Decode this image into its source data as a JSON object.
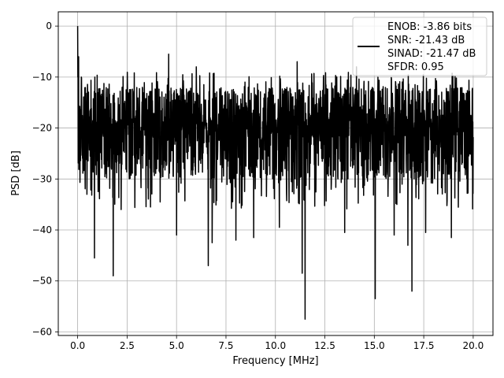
{
  "chart_data": {
    "type": "line",
    "title": "",
    "xlabel": "Frequency [MHz]",
    "ylabel": "PSD [dB]",
    "xlim": [
      -0.98,
      21.0
    ],
    "ylim": [
      -60.7,
      2.8
    ],
    "grid": true,
    "xticks": [
      0.0,
      2.5,
      5.0,
      7.5,
      10.0,
      12.5,
      15.0,
      17.5,
      20.0
    ],
    "xtick_labels": [
      "0.0",
      "2.5",
      "5.0",
      "7.5",
      "10.0",
      "12.5",
      "15.0",
      "17.5",
      "20.0"
    ],
    "yticks": [
      0,
      -10,
      -20,
      -30,
      -40,
      -50,
      -60
    ],
    "ytick_labels": [
      "0",
      "−10",
      "−20",
      "−30",
      "−40",
      "−50",
      "−60"
    ],
    "series_color": "#000000",
    "legend": {
      "placement": "upper right",
      "entries": [
        "ENOB: -3.86 bits",
        "SNR: -21.43 dB",
        "SINAD: -21.47 dB",
        "SFDR: 0.95"
      ]
    },
    "series": [
      {
        "description": "noise-like PSD trace, dense oscillation roughly between -10 and -30 dB across 0-20 MHz",
        "x_range": [
          0.0,
          20.0
        ],
        "points_approx": 2048,
        "peak": {
          "x": 0.0,
          "y": 0.0
        },
        "notable_dips": [
          {
            "x": 0.85,
            "y": -45.5
          },
          {
            "x": 1.8,
            "y": -49.0
          },
          {
            "x": 2.2,
            "y": -36.0
          },
          {
            "x": 5.0,
            "y": -41.0
          },
          {
            "x": 6.6,
            "y": -47.0
          },
          {
            "x": 6.8,
            "y": -42.5
          },
          {
            "x": 8.0,
            "y": -42.0
          },
          {
            "x": 8.9,
            "y": -41.5
          },
          {
            "x": 10.2,
            "y": -39.5
          },
          {
            "x": 11.35,
            "y": -48.5
          },
          {
            "x": 11.5,
            "y": -57.5
          },
          {
            "x": 13.5,
            "y": -40.5
          },
          {
            "x": 15.05,
            "y": -53.5
          },
          {
            "x": 16.0,
            "y": -41.0
          },
          {
            "x": 16.7,
            "y": -43.0
          },
          {
            "x": 16.9,
            "y": -52.0
          },
          {
            "x": 17.6,
            "y": -40.5
          },
          {
            "x": 18.9,
            "y": -41.5
          }
        ],
        "notable_peaks": [
          {
            "x": 0.05,
            "y": -6.0
          },
          {
            "x": 4.6,
            "y": -5.5
          },
          {
            "x": 6.0,
            "y": -8.0
          },
          {
            "x": 11.1,
            "y": -7.0
          },
          {
            "x": 14.1,
            "y": -8.0
          }
        ]
      }
    ]
  }
}
